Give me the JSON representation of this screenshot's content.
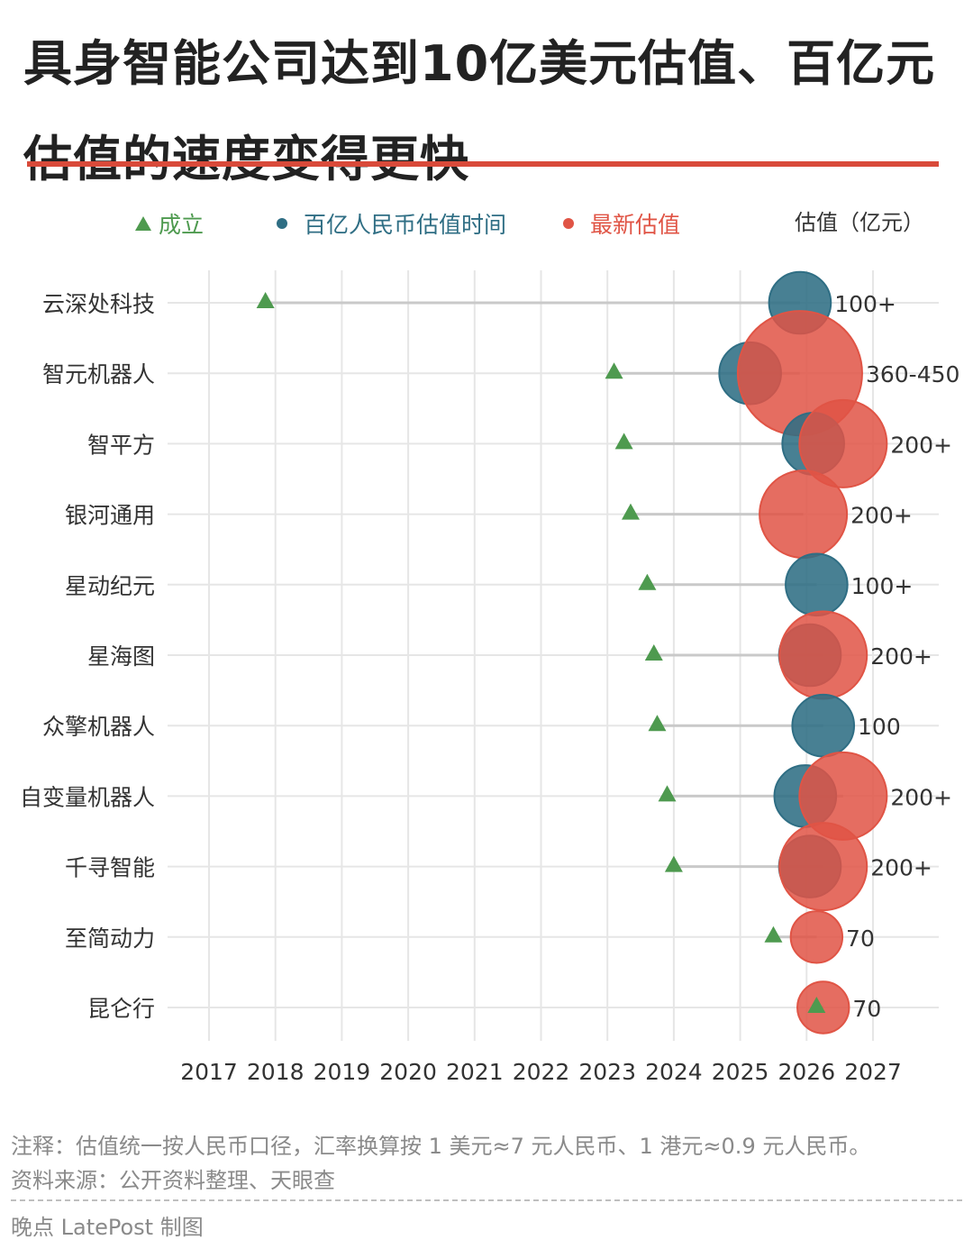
{
  "title": "具身智能公司达到10亿美元估值、百亿元估值的速度变得更快",
  "notes": {
    "note": "注释：估值统一按人民币口径，汇率换算按 1 美元≈7 元人民币、1 港元≈0.9 元人民币。",
    "source": "资料来源：公开资料整理、天眼查",
    "credit": "晚点 LatePost 制图"
  },
  "colors": {
    "founded": "#4e9a4f",
    "hundred_billion": "#2f6e84",
    "latest": "#e05445",
    "grid": "#e6e6e6",
    "connector": "#c9c9c9",
    "title_rule": "#d94a3a"
  },
  "chart_data": {
    "type": "scatter",
    "title": "",
    "xlabel": "",
    "ylabel": "",
    "xlim": [
      2017,
      2027
    ],
    "x_ticks": [
      "2017",
      "2018",
      "2019",
      "2020",
      "2021",
      "2022",
      "2023",
      "2024",
      "2025",
      "2026",
      "2027"
    ],
    "grid": true,
    "legend_position": "top",
    "legend": [
      {
        "label": "成立",
        "marker": "triangle",
        "color": "#4e9a4f"
      },
      {
        "label": "百亿人民币估值时间",
        "marker": "circle",
        "color": "#2f6e84"
      },
      {
        "label": "最新估值",
        "marker": "circle",
        "color": "#e05445"
      }
    ],
    "value_header": "估值（亿元）",
    "companies": [
      {
        "name": "云深处科技",
        "founded": 2017.85,
        "hundred_billion": 2025.9,
        "latest": null,
        "valuation": 100,
        "label": "100+"
      },
      {
        "name": "智元机器人",
        "founded": 2023.1,
        "hundred_billion": 2025.15,
        "latest": 2025.9,
        "valuation": 405,
        "label": "360-450"
      },
      {
        "name": "智平方",
        "founded": 2023.25,
        "hundred_billion": 2026.1,
        "latest": 2026.55,
        "valuation": 200,
        "label": "200+"
      },
      {
        "name": "银河通用",
        "founded": 2023.35,
        "hundred_billion": null,
        "latest": 2025.95,
        "valuation": 200,
        "label": "200+"
      },
      {
        "name": "星动纪元",
        "founded": 2023.6,
        "hundred_billion": 2026.15,
        "latest": null,
        "valuation": 100,
        "label": "100+"
      },
      {
        "name": "星海图",
        "founded": 2023.7,
        "hundred_billion": 2026.05,
        "latest": 2026.25,
        "valuation": 200,
        "label": "200+"
      },
      {
        "name": "众擎机器人",
        "founded": 2023.75,
        "hundred_billion": 2026.25,
        "latest": null,
        "valuation": 100,
        "label": "100"
      },
      {
        "name": "自变量机器人",
        "founded": 2023.9,
        "hundred_billion": 2025.98,
        "latest": 2026.55,
        "valuation": 200,
        "label": "200+"
      },
      {
        "name": "千寻智能",
        "founded": 2024.0,
        "hundred_billion": 2026.05,
        "latest": 2026.25,
        "valuation": 200,
        "label": "200+"
      },
      {
        "name": "至简动力",
        "founded": 2025.5,
        "hundred_billion": null,
        "latest": 2026.15,
        "valuation": 70,
        "label": "70"
      },
      {
        "name": "昆仑行",
        "founded": 2026.15,
        "hundred_billion": null,
        "latest": 2026.25,
        "valuation": 70,
        "label": "70"
      }
    ]
  }
}
